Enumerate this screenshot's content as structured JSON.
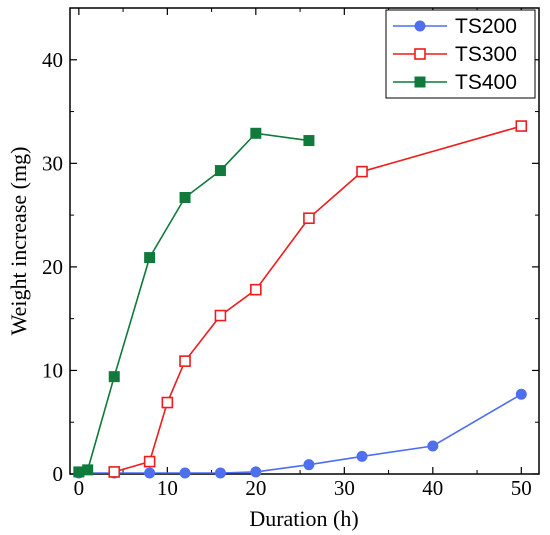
{
  "chart_data": {
    "type": "line",
    "xlabel": "Duration (h)",
    "ylabel": "Weight increase (mg)",
    "xlim": [
      -1,
      52
    ],
    "ylim": [
      0,
      45
    ],
    "xticks": [
      0,
      10,
      20,
      30,
      40,
      50
    ],
    "yticks": [
      0,
      10,
      20,
      30,
      40
    ],
    "xtick_labels": [
      "0",
      "10",
      "20",
      "30",
      "40",
      "50"
    ],
    "ytick_labels": [
      "0",
      "10",
      "20",
      "30",
      "40"
    ],
    "grid": false,
    "legend_position": "top-right",
    "series": [
      {
        "name": "TS200",
        "color": "#4f6ef0",
        "marker": "circle-filled",
        "x": [
          0,
          4,
          8,
          12,
          16,
          20,
          26,
          32,
          40,
          50
        ],
        "y": [
          0.1,
          0.1,
          0.1,
          0.1,
          0.1,
          0.2,
          0.9,
          1.7,
          2.7,
          7.7
        ]
      },
      {
        "name": "TS300",
        "color": "#ee1c1c",
        "marker": "square-open",
        "x": [
          4,
          8,
          10,
          12,
          16,
          20,
          26,
          32,
          50
        ],
        "y": [
          0.2,
          1.2,
          6.9,
          10.9,
          15.3,
          17.8,
          24.7,
          29.2,
          33.6
        ]
      },
      {
        "name": "TS400",
        "color": "#0f7a3c",
        "marker": "square-filled",
        "x": [
          0,
          1,
          4,
          8,
          12,
          16,
          20,
          26
        ],
        "y": [
          0.2,
          0.4,
          9.4,
          20.9,
          26.7,
          29.3,
          32.9,
          32.2
        ]
      }
    ]
  }
}
